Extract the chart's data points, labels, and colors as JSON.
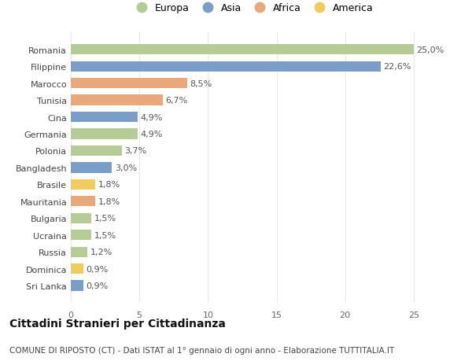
{
  "countries": [
    "Sri Lanka",
    "Dominica",
    "Russia",
    "Ucraina",
    "Bulgaria",
    "Mauritania",
    "Brasile",
    "Bangladesh",
    "Polonia",
    "Germania",
    "Cina",
    "Tunisia",
    "Marocco",
    "Filippine",
    "Romania"
  ],
  "values": [
    0.9,
    0.9,
    1.2,
    1.5,
    1.5,
    1.8,
    1.8,
    3.0,
    3.7,
    4.9,
    4.9,
    6.7,
    8.5,
    22.6,
    25.0
  ],
  "labels": [
    "0,9%",
    "0,9%",
    "1,2%",
    "1,5%",
    "1,5%",
    "1,8%",
    "1,8%",
    "3,0%",
    "3,7%",
    "4,9%",
    "4,9%",
    "6,7%",
    "8,5%",
    "22,6%",
    "25,0%"
  ],
  "continents": [
    "Asia",
    "America",
    "Europa",
    "Europa",
    "Europa",
    "Africa",
    "America",
    "Asia",
    "Europa",
    "Europa",
    "Asia",
    "Africa",
    "Africa",
    "Asia",
    "Europa"
  ],
  "continent_colors": {
    "Europa": "#b5cc96",
    "Asia": "#7b9ec8",
    "Africa": "#e8a87c",
    "America": "#f0cc60"
  },
  "legend_order": [
    "Europa",
    "Asia",
    "Africa",
    "America"
  ],
  "title": "Cittadini Stranieri per Cittadinanza",
  "subtitle": "COMUNE DI RIPOSTO (CT) - Dati ISTAT al 1° gennaio di ogni anno - Elaborazione TUTTITALIA.IT",
  "xlim": [
    0,
    26.5
  ],
  "xticks": [
    0,
    5,
    10,
    15,
    20,
    25
  ],
  "background_color": "#ffffff",
  "grid_color": "#e8e8e8",
  "bar_height": 0.62,
  "title_fontsize": 10,
  "subtitle_fontsize": 7.5,
  "label_fontsize": 8,
  "tick_fontsize": 8,
  "legend_fontsize": 9
}
